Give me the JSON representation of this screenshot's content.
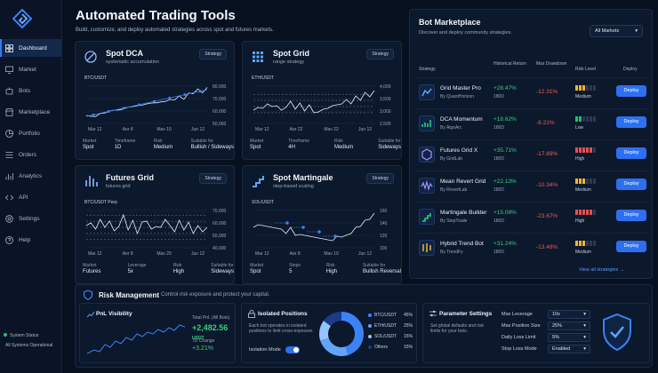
{
  "app": {
    "title": "Automated Trading Tools",
    "subtitle": "Build, customize, and deploy automated strategies across spot and futures markets."
  },
  "sidebar": {
    "items": [
      {
        "label": "Dashboard",
        "icon": "grid-icon",
        "active": true
      },
      {
        "label": "Market",
        "icon": "monitor-icon"
      },
      {
        "label": "Bots",
        "icon": "robot-icon"
      },
      {
        "label": "Marketplace",
        "icon": "store-icon"
      },
      {
        "label": "Portfolio",
        "icon": "pie-icon"
      },
      {
        "label": "Orders",
        "icon": "list-icon"
      },
      {
        "label": "Analytics",
        "icon": "chart-icon"
      },
      {
        "label": "API",
        "icon": "code-icon"
      },
      {
        "label": "Settings",
        "icon": "gear-icon"
      },
      {
        "label": "Help",
        "icon": "help-icon"
      }
    ],
    "status_title": "System Status",
    "status_text": "All Systems Operational"
  },
  "tools": [
    {
      "name": "Spot DCA",
      "subtitle": "systematic accumulation",
      "badge": "Strategy",
      "pair": "BTC/USDT",
      "icon": "dca-icon",
      "ticks_y": [
        "80,000",
        "70,000",
        "60,000",
        "50,000"
      ],
      "ticks_x": [
        "Mar 12",
        "Apr 8",
        "May 10",
        "Jun 12"
      ],
      "meta": [
        [
          "Market",
          "Spot"
        ],
        [
          "Timeframe",
          "1D"
        ],
        [
          "Risk",
          "Medium"
        ],
        [
          "Suitable for",
          "Bullish / Sideways"
        ]
      ]
    },
    {
      "name": "Spot Grid",
      "subtitle": "range strategy",
      "badge": "Strategy",
      "pair": "ETH/USDT",
      "icon": "grid-icon",
      "ticks_y": [
        "4,000",
        "3,500",
        "3,000",
        "2,500"
      ],
      "ticks_x": [
        "Mar 12",
        "Apr 22",
        "May 22",
        "Jun 12"
      ],
      "meta": [
        [
          "Market",
          "Spot"
        ],
        [
          "Timeframe",
          "4H"
        ],
        [
          "Risk",
          "Medium"
        ],
        [
          "Suitable for",
          "Sideways"
        ]
      ]
    },
    {
      "name": "Futures Grid",
      "subtitle": "futures grid",
      "badge": "Strategy",
      "pair": "BTC/USDT Perp",
      "icon": "futures-icon",
      "ticks_y": [
        "70,000",
        "60,000",
        "50,000",
        "40,000"
      ],
      "ticks_x": [
        "Mar 12",
        "Apr 8",
        "May 20",
        "Jun 12"
      ],
      "meta": [
        [
          "Market",
          "Futures"
        ],
        [
          "Leverage",
          "5x"
        ],
        [
          "Risk",
          "High"
        ],
        [
          "Suitable for",
          "Sideways"
        ]
      ]
    },
    {
      "name": "Spot Martingale",
      "subtitle": "step-based scaling",
      "badge": "Strategy",
      "pair": "SOL/USDT",
      "icon": "martingale-icon",
      "ticks_y": [
        "160",
        "140",
        "120",
        "100"
      ],
      "ticks_x": [
        "Mar 12",
        "Apr 8",
        "May 19",
        "Jun 12"
      ],
      "meta": [
        [
          "Market",
          "Spot"
        ],
        [
          "Steps",
          "5"
        ],
        [
          "Risk",
          "High"
        ],
        [
          "Suitable for",
          "Bullish Reversal"
        ]
      ]
    }
  ],
  "marketplace": {
    "title": "Bot Marketplace",
    "subtitle": "Discover and deploy community strategies.",
    "filter": "All Markets",
    "columns": [
      "Strategy",
      "Historical Return",
      "Max Drawdown",
      "Risk Level",
      "Deploy"
    ],
    "bots": [
      {
        "name": "Grid Master Pro",
        "by": "By QuantHorizon",
        "ret": "+28.47%",
        "period": "180D",
        "dd": "-12.31%",
        "risk": "Medium",
        "level": 3,
        "color": "#f2b52d",
        "icon": "gridmaster-icon"
      },
      {
        "name": "DCA Momentum",
        "by": "By AlgoArc",
        "ret": "+18.62%",
        "period": "180D",
        "dd": "-8.21%",
        "risk": "Low",
        "level": 2,
        "color": "#25c36b",
        "icon": "momentum-icon"
      },
      {
        "name": "Futures Grid X",
        "by": "By GridLab",
        "ret": "+35.71%",
        "period": "180D",
        "dd": "-17.89%",
        "risk": "High",
        "level": 5,
        "color": "#e8504f",
        "icon": "hexagon-icon"
      },
      {
        "name": "Mean Revert Grid",
        "by": "By RevertLab",
        "ret": "+22.13%",
        "period": "180D",
        "dd": "-10.34%",
        "risk": "Medium",
        "level": 3,
        "color": "#f2b52d",
        "icon": "wave-icon"
      },
      {
        "name": "Martingale Builder",
        "by": "By StepTrade",
        "ret": "+15.08%",
        "period": "180D",
        "dd": "-23.67%",
        "risk": "High",
        "level": 5,
        "color": "#e8504f",
        "icon": "stairs-icon"
      },
      {
        "name": "Hybrid Trend Bot",
        "by": "By TrendFy",
        "ret": "+31.24%",
        "period": "180D",
        "dd": "-13.48%",
        "risk": "Medium",
        "level": 3,
        "color": "#f2b52d",
        "icon": "candles-icon"
      }
    ],
    "deploy_label": "Deploy",
    "view_all": "View all strategies →"
  },
  "risk": {
    "title": "Risk Management",
    "subtitle": "Control risk exposure and protect your capital.",
    "pnl": {
      "title": "PnL Visibility",
      "total_label": "Total PnL (All Bots)",
      "total_value": "+2,482.56",
      "currency": "USDT",
      "change_label": "7D Change",
      "change_value": "+3.21%"
    },
    "isolated": {
      "title": "Isolated Positions",
      "desc": "Each bot operates in isolated positions to limit cross-exposure.",
      "toggle_label": "Isolation Mode",
      "allocations": [
        {
          "label": "BTC/USDT",
          "pct": "45%",
          "color": "#3b82f6"
        },
        {
          "label": "ETH/USDT",
          "pct": "25%",
          "color": "#60a5fa"
        },
        {
          "label": "SOL/USDT",
          "pct": "15%",
          "color": "#93c5fd"
        },
        {
          "label": "Others",
          "pct": "15%",
          "color": "#1e3a8a"
        }
      ]
    },
    "params": {
      "title": "Parameter Settings",
      "desc": "Set global defaults and risk limits for your bots.",
      "fields": [
        {
          "label": "Max Leverage",
          "value": "10x"
        },
        {
          "label": "Max Position Size",
          "value": "25%"
        },
        {
          "label": "Daily Loss Limit",
          "value": "5%"
        },
        {
          "label": "Stop Loss Mode",
          "value": "Enabled"
        }
      ]
    }
  }
}
